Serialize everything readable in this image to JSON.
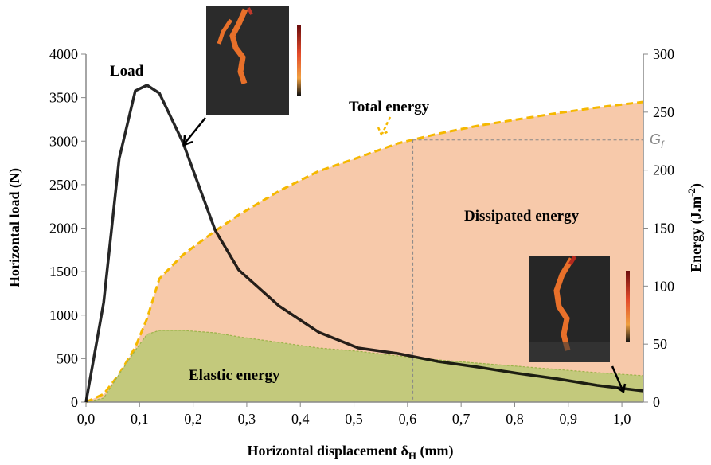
{
  "chart_data": {
    "type": "line",
    "x": [
      0,
      0.033,
      0.062,
      0.092,
      0.114,
      0.137,
      0.181,
      0.241,
      0.285,
      0.36,
      0.434,
      0.508,
      0.582,
      0.657,
      0.731,
      0.805,
      0.88,
      0.954,
      1.04
    ],
    "series": [
      {
        "name": "Total energy",
        "color": "#f5b800",
        "fill": "#f7c9aa",
        "axis": "y2",
        "values": [
          0,
          6.9,
          24,
          47.4,
          72.1,
          106.4,
          127,
          147.6,
          161.3,
          181.9,
          199.1,
          210.8,
          223.1,
          231.4,
          238.2,
          243.7,
          249.2,
          254,
          258.8
        ]
      },
      {
        "name": "Elastic energy",
        "color": "#9bb34a",
        "fill": "#c3c97c",
        "axis": "y2",
        "values": [
          0,
          3.4,
          24,
          44.6,
          58.4,
          61.8,
          61.8,
          59.7,
          56.3,
          51.5,
          46.7,
          43.9,
          39.8,
          36.4,
          33.6,
          30.9,
          28.1,
          25.4,
          22.7
        ]
      },
      {
        "name": "Load",
        "color": "#000000",
        "values": [
          0,
          1144,
          2800,
          3578,
          3643,
          3551,
          2984,
          1977,
          1519,
          1107,
          805,
          622,
          558,
          467,
          403,
          330,
          266,
          192,
          128
        ]
      }
    ],
    "dissipated_label": "Dissipated energy",
    "gf": {
      "text": "G",
      "sub": "f",
      "x": 0.61,
      "value": 226
    },
    "x_label": {
      "text": "Horizontal displacement δ",
      "sub": "H",
      "suffix": " (mm)"
    },
    "y_label": "Horizontal load (N)",
    "y2_label": {
      "text": "Energy (J.m",
      "sup": "-2",
      "suffix": ")"
    },
    "xlim": [
      0,
      1.04
    ],
    "xticks": [
      {
        "value": 0,
        "label": "0,0"
      },
      {
        "value": 0.1,
        "label": "0,1"
      },
      {
        "value": 0.2,
        "label": "0,2"
      },
      {
        "value": 0.3,
        "label": "0,3"
      },
      {
        "value": 0.4,
        "label": "0,4"
      },
      {
        "value": 0.5,
        "label": "0,5"
      },
      {
        "value": 0.6,
        "label": "0,6"
      },
      {
        "value": 0.7,
        "label": "0,7"
      },
      {
        "value": 0.8,
        "label": "0,8"
      },
      {
        "value": 0.9,
        "label": "0,9"
      },
      {
        "value": 1.0,
        "label": "1,0"
      }
    ],
    "ylim": [
      0,
      4000
    ],
    "yticks": [
      0,
      500,
      1000,
      1500,
      2000,
      2500,
      3000,
      3500,
      4000
    ],
    "y2lim": [
      0,
      300
    ],
    "y2ticks": [
      0,
      50,
      100,
      150,
      200,
      250,
      300
    ],
    "grid": false
  }
}
